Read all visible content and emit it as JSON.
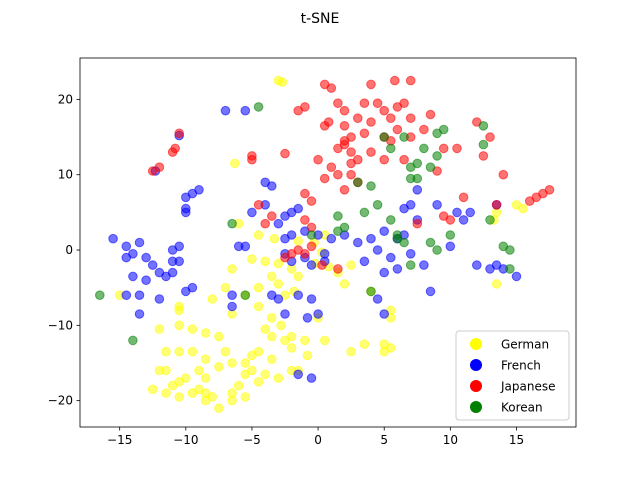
{
  "chart_data": {
    "type": "scatter",
    "title": "t-SNE",
    "xlabel": "",
    "ylabel": "",
    "xlim": [
      -18.0,
      19.5
    ],
    "ylim": [
      -23.5,
      25.5
    ],
    "xticks": [
      -15,
      -10,
      -5,
      0,
      5,
      10,
      15
    ],
    "yticks": [
      -20,
      -10,
      0,
      10,
      20
    ],
    "grid": false,
    "legend_position": "lower right",
    "marker_alpha": 0.55,
    "series": [
      {
        "name": "German",
        "color": "#ffff00",
        "points": [
          [
            -3.0,
            22.5
          ],
          [
            -2.7,
            22.3
          ],
          [
            -6.3,
            11.5
          ],
          [
            -6.0,
            3.5
          ],
          [
            -4.5,
            2.0
          ],
          [
            -3.3,
            1.5
          ],
          [
            -1.5,
            1.2
          ],
          [
            -0.3,
            1.0
          ],
          [
            0.5,
            2.0
          ],
          [
            0.3,
            -0.3
          ],
          [
            -0.2,
            -1.8
          ],
          [
            0.8,
            -2.2
          ],
          [
            -5.0,
            -1.2
          ],
          [
            -4.0,
            -1.5
          ],
          [
            -3.0,
            -1.8
          ],
          [
            -2.0,
            -2.5
          ],
          [
            -1.5,
            -3.5
          ],
          [
            -3.5,
            -3.5
          ],
          [
            -3.0,
            -4.5
          ],
          [
            -4.5,
            -5.0
          ],
          [
            -2.5,
            -6.0
          ],
          [
            -1.8,
            -5.5
          ],
          [
            -6.5,
            -2.5
          ],
          [
            -7.0,
            -5.0
          ],
          [
            -5.5,
            -6.0
          ],
          [
            -8.0,
            -6.5
          ],
          [
            -6.5,
            -8.5
          ],
          [
            -4.5,
            -7.5
          ],
          [
            -3.5,
            -9.0
          ],
          [
            -2.8,
            -10.0
          ],
          [
            -2.0,
            -11.5
          ],
          [
            -1.0,
            -12.0
          ],
          [
            -2.5,
            -12.0
          ],
          [
            -2.0,
            -13.0
          ],
          [
            -0.8,
            -14.0
          ],
          [
            -3.5,
            -14.5
          ],
          [
            -4.5,
            -13.5
          ],
          [
            -5.0,
            -14.0
          ],
          [
            -5.5,
            -15.0
          ],
          [
            -6.5,
            -15.0
          ],
          [
            -7.0,
            -13.5
          ],
          [
            -7.5,
            -11.5
          ],
          [
            -8.5,
            -11.0
          ],
          [
            -9.5,
            -10.5
          ],
          [
            -10.5,
            -10.0
          ],
          [
            -10.5,
            -8.0
          ],
          [
            -10.5,
            -7.5
          ],
          [
            -12.0,
            -10.5
          ],
          [
            -11.5,
            -13.5
          ],
          [
            -10.5,
            -13.5
          ],
          [
            -9.5,
            -13.5
          ],
          [
            -8.5,
            -14.5
          ],
          [
            -7.5,
            -15.5
          ],
          [
            -9.0,
            -16.0
          ],
          [
            -8.5,
            -17.0
          ],
          [
            -10.0,
            -17.0
          ],
          [
            -10.5,
            -17.5
          ],
          [
            -11.5,
            -16.0
          ],
          [
            -12.0,
            -16.0
          ],
          [
            -11.0,
            -18.0
          ],
          [
            -11.5,
            -19.0
          ],
          [
            -12.5,
            -18.5
          ],
          [
            -10.5,
            -19.5
          ],
          [
            -9.5,
            -19.0
          ],
          [
            -8.5,
            -19.0
          ],
          [
            -8.0,
            -19.5
          ],
          [
            -7.5,
            -21.0
          ],
          [
            -6.5,
            -19.0
          ],
          [
            -6.0,
            -18.0
          ],
          [
            -5.5,
            -16.5
          ],
          [
            -5.0,
            -16.0
          ],
          [
            -4.5,
            -17.5
          ],
          [
            -4.0,
            -16.5
          ],
          [
            -3.0,
            -17.0
          ],
          [
            -6.5,
            -20.0
          ],
          [
            -5.5,
            -19.5
          ],
          [
            -2.0,
            -16.0
          ],
          [
            -1.5,
            -16.0
          ],
          [
            -8.5,
            -20.0
          ],
          [
            -9.0,
            -18.5
          ],
          [
            -3.5,
            -11.5
          ],
          [
            -4.0,
            -10.5
          ],
          [
            0.0,
            -9.0
          ],
          [
            0.5,
            -12.0
          ],
          [
            2.5,
            -13.5
          ],
          [
            3.5,
            -12.5
          ],
          [
            5.0,
            -12.5
          ],
          [
            5.5,
            -13.0
          ],
          [
            5.0,
            -13.5
          ],
          [
            5.5,
            -8.0
          ],
          [
            5.5,
            -9.0
          ],
          [
            4.0,
            -5.5
          ],
          [
            2.0,
            -4.5
          ],
          [
            1.5,
            -3.0
          ],
          [
            2.5,
            -2.0
          ],
          [
            13.5,
            5.0
          ],
          [
            13.3,
            4.0
          ],
          [
            13.5,
            -4.5
          ],
          [
            15.0,
            6.0
          ],
          [
            15.5,
            5.5
          ],
          [
            -15.0,
            -6.0
          ]
        ]
      },
      {
        "name": "French",
        "color": "#0000ff",
        "points": [
          [
            -15.5,
            1.5
          ],
          [
            -14.5,
            0.5
          ],
          [
            -14.0,
            -0.5
          ],
          [
            -13.5,
            1.0
          ],
          [
            -13.0,
            -1.0
          ],
          [
            -14.5,
            -1.0
          ],
          [
            -14.0,
            -3.5
          ],
          [
            -12.5,
            -2.0
          ],
          [
            -12.0,
            -3.0
          ],
          [
            -13.0,
            -4.0
          ],
          [
            -11.5,
            -3.5
          ],
          [
            -12.0,
            -6.5
          ],
          [
            -11.0,
            -3.0
          ],
          [
            -11.0,
            -1.5
          ],
          [
            -10.5,
            -1.5
          ],
          [
            -11.0,
            0.0
          ],
          [
            -10.5,
            0.5
          ],
          [
            -13.5,
            -6.0
          ],
          [
            -14.5,
            -6.0
          ],
          [
            -13.5,
            -8.5
          ],
          [
            -10.0,
            -5.5
          ],
          [
            -9.5,
            -5.0
          ],
          [
            -10.0,
            5.0
          ],
          [
            -10.0,
            5.5
          ],
          [
            -10.0,
            7.0
          ],
          [
            -9.5,
            7.5
          ],
          [
            -9.0,
            8.0
          ],
          [
            -12.3,
            10.5
          ],
          [
            -10.5,
            15.2
          ],
          [
            -7.0,
            18.5
          ],
          [
            -5.5,
            18.5
          ],
          [
            -6.0,
            0.5
          ],
          [
            -5.5,
            0.5
          ],
          [
            -5.0,
            5.0
          ],
          [
            -4.0,
            6.0
          ],
          [
            -3.5,
            8.5
          ],
          [
            -4.0,
            9.0
          ],
          [
            -2.5,
            4.5
          ],
          [
            -3.0,
            3.5
          ],
          [
            -2.0,
            5.0
          ],
          [
            -1.5,
            5.5
          ],
          [
            -2.0,
            2.0
          ],
          [
            -1.0,
            2.5
          ],
          [
            0.0,
            2.0
          ],
          [
            1.0,
            1.5
          ],
          [
            -2.5,
            1.5
          ],
          [
            -2.5,
            -0.5
          ],
          [
            -1.0,
            -1.0
          ],
          [
            0.5,
            -1.5
          ],
          [
            -0.5,
            -2.0
          ],
          [
            -2.0,
            -1.5
          ],
          [
            -3.5,
            -6.0
          ],
          [
            -3.0,
            -6.5
          ],
          [
            -2.5,
            -8.5
          ],
          [
            -1.5,
            -6.0
          ],
          [
            -0.5,
            -6.5
          ],
          [
            -0.8,
            -9.0
          ],
          [
            0.0,
            -8.5
          ],
          [
            -1.5,
            -16.5
          ],
          [
            -0.5,
            -17.0
          ],
          [
            -6.5,
            -6.0
          ],
          [
            -6.5,
            -7.5
          ],
          [
            4.5,
            -6.5
          ],
          [
            5.0,
            -8.5
          ],
          [
            2.0,
            2.0
          ],
          [
            3.0,
            1.0
          ],
          [
            4.0,
            1.5
          ],
          [
            4.5,
            0.0
          ],
          [
            5.0,
            2.5
          ],
          [
            5.5,
            -1.0
          ],
          [
            6.0,
            1.5
          ],
          [
            6.5,
            2.0
          ],
          [
            5.0,
            -3.0
          ],
          [
            6.0,
            -2.5
          ],
          [
            7.0,
            -0.5
          ],
          [
            6.5,
            5.5
          ],
          [
            7.0,
            6.0
          ],
          [
            7.5,
            4.0
          ],
          [
            7.5,
            8.0
          ],
          [
            8.0,
            -2.0
          ],
          [
            8.5,
            -5.5
          ],
          [
            9.0,
            6.0
          ],
          [
            10.0,
            0.5
          ],
          [
            10.5,
            5.0
          ],
          [
            11.0,
            4.0
          ],
          [
            11.5,
            5.0
          ],
          [
            12.0,
            -2.0
          ],
          [
            13.0,
            -2.5
          ],
          [
            13.5,
            -2.0
          ],
          [
            13.5,
            6.0
          ],
          [
            14.0,
            -2.5
          ],
          [
            15.0,
            -3.5
          ],
          [
            0.5,
            -0.5
          ],
          [
            3.5,
            -1.5
          ]
        ]
      },
      {
        "name": "Japanese",
        "color": "#ff0000",
        "points": [
          [
            -12.5,
            10.5
          ],
          [
            -12.0,
            11.0
          ],
          [
            -11.0,
            13.0
          ],
          [
            -10.8,
            13.5
          ],
          [
            -10.5,
            15.5
          ],
          [
            -5.0,
            12.5
          ],
          [
            -5.0,
            12.0
          ],
          [
            -4.5,
            6.0
          ],
          [
            -4.0,
            3.5
          ],
          [
            -3.5,
            4.5
          ],
          [
            -2.5,
            12.8
          ],
          [
            -1.5,
            18.5
          ],
          [
            -1.0,
            19.0
          ],
          [
            -1.0,
            7.5
          ],
          [
            -1.0,
            4.0
          ],
          [
            -0.5,
            3.0
          ],
          [
            -0.5,
            6.5
          ],
          [
            0.0,
            12.0
          ],
          [
            0.5,
            22.0
          ],
          [
            0.5,
            16.5
          ],
          [
            0.8,
            17.0
          ],
          [
            1.0,
            21.5
          ],
          [
            0.5,
            9.5
          ],
          [
            1.0,
            11.0
          ],
          [
            1.5,
            13.5
          ],
          [
            1.5,
            19.5
          ],
          [
            2.0,
            18.5
          ],
          [
            2.0,
            16.5
          ],
          [
            2.0,
            14.5
          ],
          [
            2.5,
            15.0
          ],
          [
            2.5,
            13.0
          ],
          [
            2.5,
            11.5
          ],
          [
            3.0,
            9.0
          ],
          [
            3.0,
            17.5
          ],
          [
            3.5,
            15.5
          ],
          [
            3.5,
            19.5
          ],
          [
            4.0,
            22.0
          ],
          [
            4.0,
            17.0
          ],
          [
            4.5,
            19.5
          ],
          [
            5.0,
            18.5
          ],
          [
            5.0,
            15.0
          ],
          [
            5.0,
            12.0
          ],
          [
            5.5,
            17.5
          ],
          [
            5.5,
            14.5
          ],
          [
            5.8,
            22.5
          ],
          [
            6.0,
            19.0
          ],
          [
            6.0,
            16.0
          ],
          [
            6.5,
            19.5
          ],
          [
            6.5,
            12.0
          ],
          [
            7.0,
            17.5
          ],
          [
            7.0,
            15.0
          ],
          [
            7.0,
            22.5
          ],
          [
            8.0,
            16.0
          ],
          [
            8.5,
            18.0
          ],
          [
            9.0,
            10.5
          ],
          [
            9.5,
            13.5
          ],
          [
            9.5,
            4.5
          ],
          [
            10.0,
            4.0
          ],
          [
            10.5,
            13.5
          ],
          [
            11.0,
            7.0
          ],
          [
            12.0,
            17.0
          ],
          [
            12.5,
            12.5
          ],
          [
            13.0,
            15.0
          ],
          [
            13.5,
            6.0
          ],
          [
            14.0,
            10.0
          ],
          [
            16.0,
            6.5
          ],
          [
            16.5,
            7.0
          ],
          [
            17.0,
            7.5
          ],
          [
            17.5,
            8.0
          ],
          [
            2.0,
            8.0
          ],
          [
            1.5,
            10.0
          ],
          [
            2.5,
            10.0
          ],
          [
            0.3,
            -2.0
          ],
          [
            -0.5,
            0.5
          ],
          [
            -1.5,
            0.0
          ],
          [
            -2.0,
            -0.5
          ],
          [
            -2.5,
            -1.0
          ],
          [
            -1.0,
            -0.5
          ],
          [
            1.5,
            -2.5
          ],
          [
            7.5,
            3.5
          ],
          [
            2.0,
            14.0
          ],
          [
            3.0,
            12.0
          ],
          [
            4.0,
            13.0
          ]
        ]
      },
      {
        "name": "Korean",
        "color": "#008000",
        "points": [
          [
            -16.5,
            -6.0
          ],
          [
            -14.0,
            -12.0
          ],
          [
            -6.5,
            3.5
          ],
          [
            -5.5,
            -6.0
          ],
          [
            -4.5,
            19.0
          ],
          [
            -0.5,
            2.0
          ],
          [
            1.5,
            4.5
          ],
          [
            1.5,
            2.5
          ],
          [
            2.0,
            3.0
          ],
          [
            3.0,
            9.0
          ],
          [
            3.5,
            5.0
          ],
          [
            4.0,
            8.5
          ],
          [
            4.5,
            6.0
          ],
          [
            5.0,
            15.0
          ],
          [
            5.5,
            13.5
          ],
          [
            6.0,
            1.5
          ],
          [
            6.5,
            1.0
          ],
          [
            6.0,
            2.0
          ],
          [
            7.0,
            9.5
          ],
          [
            7.0,
            11.0
          ],
          [
            7.5,
            11.5
          ],
          [
            7.5,
            9.5
          ],
          [
            8.0,
            13.5
          ],
          [
            8.5,
            11.0
          ],
          [
            9.0,
            12.5
          ],
          [
            9.0,
            15.5
          ],
          [
            9.5,
            16.0
          ],
          [
            8.5,
            1.0
          ],
          [
            9.0,
            0.0
          ],
          [
            10.0,
            2.0
          ],
          [
            12.5,
            14.0
          ],
          [
            12.5,
            16.5
          ],
          [
            13.0,
            4.0
          ],
          [
            14.0,
            0.5
          ],
          [
            14.5,
            0.0
          ],
          [
            14.5,
            -2.5
          ],
          [
            4.0,
            -5.5
          ],
          [
            5.5,
            4.0
          ],
          [
            6.5,
            15.0
          ],
          [
            7.0,
            -2.0
          ]
        ]
      }
    ]
  }
}
